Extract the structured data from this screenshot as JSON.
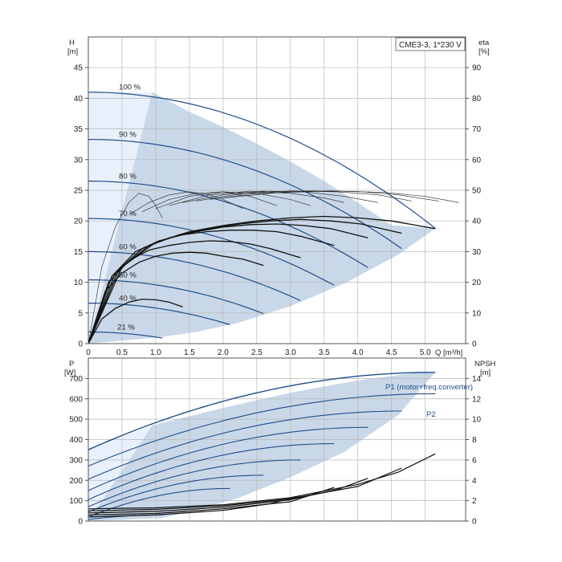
{
  "chart_data": [
    {
      "type": "line",
      "title": "CME3-3, 1*230 V",
      "xlabel": "Q [m³/h]",
      "ylabel": "H [m]",
      "y2label": "eta [%]",
      "xlim": [
        0,
        5.6
      ],
      "ylim": [
        0,
        50
      ],
      "y2lim": [
        0,
        100
      ],
      "xticks": [
        "0",
        "0.5",
        "1.0",
        "1.5",
        "2.0",
        "2.5",
        "3.0",
        "3.5",
        "4.0",
        "4.5",
        "5.0"
      ],
      "yticks": [
        "0",
        "5",
        "10",
        "15",
        "20",
        "25",
        "30",
        "35",
        "40",
        "45"
      ],
      "y2ticks": [
        "0",
        "10",
        "20",
        "30",
        "40",
        "50",
        "60",
        "70",
        "80",
        "90"
      ],
      "grid": true,
      "head_curves": [
        {
          "label": "100 %",
          "h0": 41.0,
          "qmax": 5.15,
          "hend": 18.8
        },
        {
          "label": "90 %",
          "h0": 33.3,
          "qmax": 4.65,
          "hend": 15.5
        },
        {
          "label": "80 %",
          "h0": 26.5,
          "qmax": 4.15,
          "hend": 12.4
        },
        {
          "label": "70 %",
          "h0": 20.4,
          "qmax": 3.65,
          "hend": 9.5
        },
        {
          "label": "60 %",
          "h0": 15.0,
          "qmax": 3.15,
          "hend": 7.0
        },
        {
          "label": "50 %",
          "h0": 10.4,
          "qmax": 2.6,
          "hend": 4.9
        },
        {
          "label": "40 %",
          "h0": 6.6,
          "qmax": 2.1,
          "hend": 3.1
        },
        {
          "label": "21 %",
          "h0": 1.9,
          "qmax": 1.1,
          "hend": 0.9
        }
      ],
      "eta_curves": [
        {
          "q": [
            0,
            0.5,
            1.0,
            1.5,
            2.0,
            2.5,
            3.0,
            3.5,
            4.0,
            4.5,
            5.15
          ],
          "eta": [
            0,
            25,
            33,
            36.5,
            38.5,
            40,
            41,
            41.5,
            41,
            40,
            37.5
          ]
        },
        {
          "q": [
            0,
            0.45,
            0.9,
            1.35,
            1.8,
            2.25,
            2.7,
            3.15,
            3.6,
            4.05,
            4.65
          ],
          "eta": [
            0,
            24,
            32,
            35.5,
            37.5,
            39,
            40,
            40.5,
            40,
            39,
            36
          ]
        },
        {
          "q": [
            0,
            0.4,
            0.8,
            1.2,
            1.6,
            2.0,
            2.4,
            2.8,
            3.2,
            3.6,
            4.15
          ],
          "eta": [
            0,
            23,
            31,
            34.5,
            36.5,
            38,
            38.8,
            39,
            38.5,
            37.5,
            34.5
          ]
        },
        {
          "q": [
            0,
            0.35,
            0.7,
            1.05,
            1.4,
            1.75,
            2.1,
            2.45,
            2.8,
            3.15,
            3.65
          ],
          "eta": [
            0,
            22,
            30,
            33.5,
            35.5,
            36.5,
            37,
            37,
            36.5,
            35,
            32
          ]
        },
        {
          "q": [
            0,
            0.3,
            0.6,
            0.9,
            1.2,
            1.5,
            1.8,
            2.1,
            2.4,
            2.7,
            3.15
          ],
          "eta": [
            0,
            20,
            27,
            30.5,
            32,
            33,
            33.5,
            33.3,
            32.5,
            31,
            28
          ]
        },
        {
          "q": [
            0,
            0.25,
            0.5,
            0.75,
            1.0,
            1.25,
            1.5,
            1.75,
            2.0,
            2.3,
            2.6
          ],
          "eta": [
            0,
            17,
            23,
            26.5,
            28.5,
            29.5,
            29.8,
            29.5,
            28.5,
            27.5,
            25.5
          ]
        },
        {
          "q": [
            0,
            0.2,
            0.4,
            0.6,
            0.8,
            1.0,
            1.2,
            1.4
          ],
          "eta": [
            0,
            8,
            11.5,
            13.5,
            14.5,
            14.3,
            13.5,
            12
          ]
        }
      ],
      "eta_thin_curves": [
        {
          "q": [
            0,
            0.2,
            0.4,
            0.6,
            0.75,
            0.9,
            1.0,
            1.1
          ],
          "eta": [
            0,
            25,
            38,
            46,
            49,
            48,
            45,
            41
          ]
        },
        {
          "q": [
            0.6,
            0.9,
            1.2,
            1.5,
            1.8,
            2.0,
            2.3
          ],
          "eta": [
            42,
            46,
            48.5,
            49.5,
            48.5,
            47,
            44
          ]
        },
        {
          "q": [
            0.8,
            1.2,
            1.6,
            2.0,
            2.4,
            2.8
          ],
          "eta": [
            43,
            47,
            49,
            49.5,
            48,
            45
          ]
        },
        {
          "q": [
            1.0,
            1.5,
            2.0,
            2.5,
            3.0,
            3.3
          ],
          "eta": [
            44,
            48,
            49.5,
            49,
            47,
            45
          ]
        },
        {
          "q": [
            1.2,
            1.8,
            2.4,
            3.0,
            3.5,
            3.8
          ],
          "eta": [
            45,
            48.5,
            49.7,
            49,
            47.5,
            46
          ]
        },
        {
          "q": [
            1.4,
            2.0,
            2.6,
            3.2,
            3.8,
            4.3
          ],
          "eta": [
            46,
            48.5,
            49.7,
            49.5,
            48,
            46
          ]
        },
        {
          "q": [
            1.6,
            2.3,
            3.0,
            3.7,
            4.3,
            4.8
          ],
          "eta": [
            46.5,
            49,
            49.8,
            49.5,
            48.5,
            46.5
          ]
        },
        {
          "q": [
            1.8,
            2.5,
            3.3,
            4.0,
            4.6,
            5.2
          ],
          "eta": [
            47,
            49,
            49.8,
            49.6,
            48.5,
            46.5
          ]
        },
        {
          "q": [
            2.0,
            2.8,
            3.6,
            4.4,
            5.0,
            5.5
          ],
          "eta": [
            47.5,
            49.2,
            49.8,
            49.3,
            48,
            46
          ]
        }
      ],
      "envelope": {
        "q": [
          0,
          0.95,
          1.5,
          2.0,
          2.5,
          3.0,
          3.5,
          4.0,
          4.5,
          5.15,
          4.6,
          3.8,
          3.0,
          2.2,
          1.6,
          1.1,
          0
        ],
        "h": [
          0,
          41.0,
          37.8,
          35.3,
          32.6,
          29.7,
          26.5,
          23.0,
          19.3,
          18.8,
          14.5,
          9.8,
          6.1,
          3.3,
          1.9,
          1.1,
          0
        ]
      }
    },
    {
      "type": "line",
      "xlabel": "Q [m³/h]",
      "ylabel": "P [W]",
      "y2label": "NPSH [m]",
      "xlim": [
        0,
        5.6
      ],
      "ylim": [
        0,
        800
      ],
      "y2lim": [
        0,
        16
      ],
      "yticks": [
        "0",
        "100",
        "200",
        "300",
        "400",
        "500",
        "600",
        "700"
      ],
      "y2ticks": [
        "0",
        "2",
        "4",
        "6",
        "8",
        "10",
        "12",
        "14"
      ],
      "grid": true,
      "series_labels": {
        "p1": "P1 (motor+freq.converter)",
        "p2": "P2"
      },
      "p1_curves": [
        {
          "p0": 350,
          "qmax": 5.15,
          "pend": 730
        },
        {
          "p0": 270,
          "qmax": 5.15,
          "pend": 625
        },
        {
          "p0": 205,
          "qmax": 4.65,
          "pend": 540
        },
        {
          "p0": 150,
          "qmax": 4.15,
          "pend": 460
        },
        {
          "p0": 105,
          "qmax": 3.65,
          "pend": 380
        },
        {
          "p0": 70,
          "qmax": 3.15,
          "pend": 300
        },
        {
          "p0": 45,
          "qmax": 2.6,
          "pend": 225
        },
        {
          "p0": 20,
          "qmax": 2.1,
          "pend": 160
        },
        {
          "p0": 8,
          "qmax": 1.1,
          "pend": 30
        }
      ],
      "npsh_curves": [
        {
          "q": [
            0,
            1.0,
            2.0,
            3.0,
            4.0,
            4.6,
            5.15
          ],
          "npsh": [
            1.2,
            1.3,
            1.6,
            2.3,
            3.6,
            4.8,
            6.6
          ]
        },
        {
          "q": [
            0,
            1.0,
            2.0,
            3.0,
            4.0,
            4.65
          ],
          "npsh": [
            1.0,
            1.15,
            1.5,
            2.2,
            3.4,
            5.2
          ]
        },
        {
          "q": [
            0,
            1.0,
            2.0,
            3.0,
            3.7,
            4.15
          ],
          "npsh": [
            0.8,
            0.95,
            1.35,
            2.1,
            3.1,
            4.2
          ]
        },
        {
          "q": [
            0,
            1.0,
            2.0,
            3.0,
            3.65
          ],
          "npsh": [
            0.6,
            0.75,
            1.2,
            1.9,
            3.3
          ]
        },
        {
          "q": [
            0,
            1.0,
            2.0,
            2.7,
            3.15
          ],
          "npsh": [
            0.4,
            0.6,
            1.05,
            1.7,
            2.5
          ]
        }
      ],
      "envelope": {
        "q": [
          0,
          0.95,
          2.0,
          3.0,
          4.0,
          4.8,
          5.15,
          4.6,
          3.8,
          3.0,
          2.2,
          1.6,
          1.1,
          0
        ],
        "p": [
          0,
          470,
          555,
          630,
          690,
          725,
          730,
          520,
          340,
          215,
          110,
          55,
          15,
          0
        ]
      }
    }
  ]
}
